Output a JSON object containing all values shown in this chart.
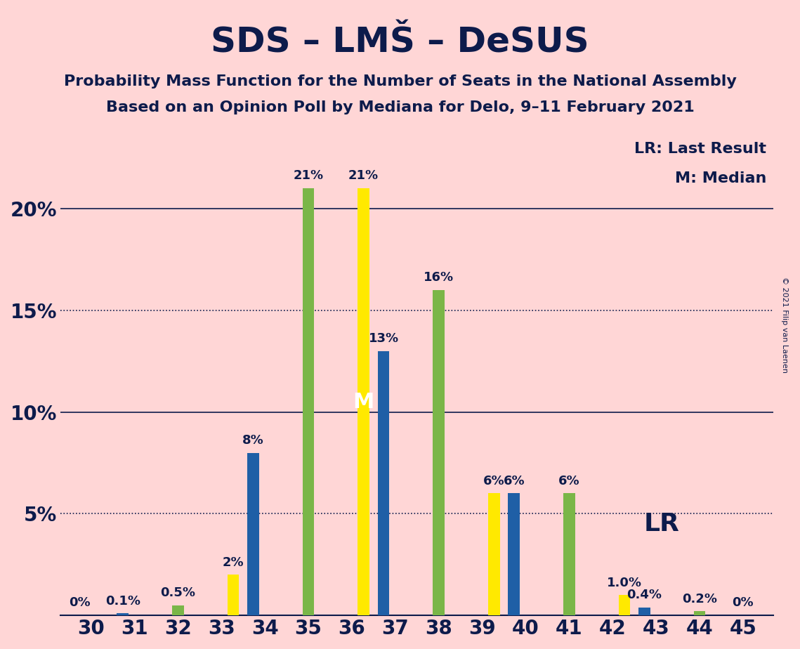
{
  "title": "SDS – LMŠ – DeSUS",
  "subtitle1": "Probability Mass Function for the Number of Seats in the National Assembly",
  "subtitle2": "Based on an Opinion Poll by Mediana for Delo, 9–11 February 2021",
  "copyright": "© 2021 Filip van Laenen",
  "seats": [
    30,
    31,
    32,
    33,
    34,
    35,
    36,
    37,
    38,
    39,
    40,
    41,
    42,
    43,
    44,
    45
  ],
  "blue_values": [
    0.0,
    0.1,
    0.0,
    0.0,
    8.0,
    0.0,
    0.0,
    13.0,
    0.0,
    0.0,
    6.0,
    0.0,
    0.0,
    0.4,
    0.0,
    0.0
  ],
  "green_values": [
    0.0,
    0.0,
    0.5,
    0.0,
    0.0,
    21.0,
    0.0,
    0.0,
    16.0,
    0.0,
    0.0,
    6.0,
    0.0,
    0.0,
    0.2,
    0.0
  ],
  "yellow_values": [
    0.0,
    0.0,
    0.0,
    2.0,
    0.0,
    0.0,
    21.0,
    0.0,
    0.0,
    6.0,
    0.0,
    0.0,
    1.0,
    0.0,
    0.0,
    0.0
  ],
  "blue_color": "#1f5fa6",
  "green_color": "#7ab648",
  "yellow_color": "#ffe900",
  "background_color": "#ffd6d6",
  "text_color": "#0d1b4b",
  "ylim": [
    0,
    24
  ],
  "yticks": [
    0,
    5,
    10,
    15,
    20
  ],
  "ytick_labels": [
    "",
    "5%",
    "10%",
    "15%",
    "20%"
  ],
  "bar_width": 0.27,
  "median_seat": 36,
  "lr_seat": 42,
  "annotations": {
    "30": {
      "blue": "0%"
    },
    "31": {
      "blue": "0.1%"
    },
    "32": {
      "green": "0.5%"
    },
    "33": {
      "yellow": "2%"
    },
    "34": {
      "blue": "8%"
    },
    "35": {
      "green": "21%"
    },
    "36": {
      "yellow": "21%"
    },
    "37": {
      "blue": "13%"
    },
    "38": {
      "green": "16%"
    },
    "39": {
      "yellow": "6%"
    },
    "40": {
      "blue": "6%"
    },
    "41": {
      "green": "6%"
    },
    "42": {
      "yellow": "1.0%"
    },
    "43": {
      "blue": "0.4%"
    },
    "44": {
      "green": "0.2%"
    },
    "45": {
      "green": "0%"
    }
  },
  "dotted_line_values": [
    5,
    15
  ],
  "solid_line_values": [
    10,
    20
  ],
  "legend_lr_text": "LR: Last Result",
  "legend_m_text": "M: Median"
}
